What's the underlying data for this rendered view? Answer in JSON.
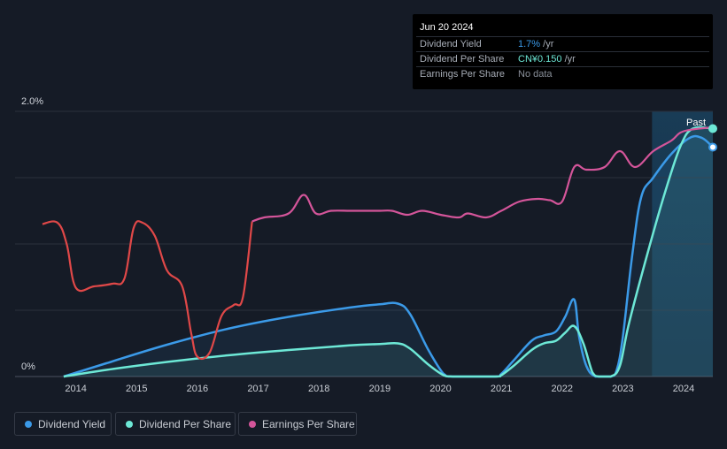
{
  "tooltip": {
    "date": "Jun 20 2024",
    "rows": [
      {
        "label": "Dividend Yield",
        "value": "1.7%",
        "unit": " /yr",
        "color": "#3b9ae8"
      },
      {
        "label": "Dividend Per Share",
        "value": "CN¥0.150",
        "unit": " /yr",
        "color": "#6de8d6"
      },
      {
        "label": "Earnings Per Share",
        "value": "No data",
        "unit": "",
        "color": "#8a909a"
      }
    ]
  },
  "legend": [
    {
      "label": "Dividend Yield",
      "color": "#3b9ae8"
    },
    {
      "label": "Dividend Per Share",
      "color": "#6de8d6"
    },
    {
      "label": "Earnings Per Share",
      "color": "#d4559a"
    }
  ],
  "chart_data": {
    "type": "line",
    "title": "",
    "xlabel": "",
    "ylabel": "",
    "x_ticks": [
      "2014",
      "2015",
      "2016",
      "2017",
      "2018",
      "2019",
      "2020",
      "2021",
      "2022",
      "2023",
      "2024"
    ],
    "y_tick_labels": [
      "0%",
      "2.0%"
    ],
    "ylim": [
      0,
      2.0
    ],
    "xlim": [
      2013.0,
      2024.48
    ],
    "past_label": "Past",
    "past_start": 2023.48,
    "grid": true,
    "series": [
      {
        "name": "Dividend Yield",
        "color": "#3b9ae8",
        "fill": true,
        "points": [
          [
            2013.8,
            0.0
          ],
          [
            2014.5,
            0.1
          ],
          [
            2015.5,
            0.24
          ],
          [
            2016.5,
            0.36
          ],
          [
            2017.5,
            0.45
          ],
          [
            2018.5,
            0.52
          ],
          [
            2019.0,
            0.545
          ],
          [
            2019.3,
            0.55
          ],
          [
            2019.5,
            0.47
          ],
          [
            2019.8,
            0.2
          ],
          [
            2020.05,
            0.02
          ],
          [
            2020.2,
            0.0
          ],
          [
            2020.9,
            0.0
          ],
          [
            2021.0,
            0.02
          ],
          [
            2021.2,
            0.12
          ],
          [
            2021.5,
            0.27
          ],
          [
            2021.7,
            0.31
          ],
          [
            2021.9,
            0.34
          ],
          [
            2022.05,
            0.45
          ],
          [
            2022.2,
            0.58
          ],
          [
            2022.28,
            0.3
          ],
          [
            2022.4,
            0.08
          ],
          [
            2022.55,
            0.0
          ],
          [
            2022.8,
            0.0
          ],
          [
            2022.9,
            0.05
          ],
          [
            2023.0,
            0.3
          ],
          [
            2023.15,
            0.9
          ],
          [
            2023.3,
            1.35
          ],
          [
            2023.5,
            1.5
          ],
          [
            2023.8,
            1.68
          ],
          [
            2024.1,
            1.8
          ],
          [
            2024.3,
            1.8
          ],
          [
            2024.48,
            1.73
          ]
        ]
      },
      {
        "name": "Dividend Per Share",
        "color": "#6de8d6",
        "fill": true,
        "points": [
          [
            2013.8,
            0.0
          ],
          [
            2014.5,
            0.05
          ],
          [
            2015.5,
            0.11
          ],
          [
            2016.5,
            0.16
          ],
          [
            2017.5,
            0.2
          ],
          [
            2018.5,
            0.235
          ],
          [
            2019.0,
            0.245
          ],
          [
            2019.3,
            0.25
          ],
          [
            2019.5,
            0.21
          ],
          [
            2019.8,
            0.09
          ],
          [
            2020.05,
            0.01
          ],
          [
            2020.2,
            0.0
          ],
          [
            2020.9,
            0.0
          ],
          [
            2021.0,
            0.01
          ],
          [
            2021.2,
            0.08
          ],
          [
            2021.5,
            0.2
          ],
          [
            2021.7,
            0.25
          ],
          [
            2021.9,
            0.27
          ],
          [
            2022.05,
            0.33
          ],
          [
            2022.2,
            0.38
          ],
          [
            2022.35,
            0.25
          ],
          [
            2022.5,
            0.03
          ],
          [
            2022.6,
            0.0
          ],
          [
            2022.8,
            0.0
          ],
          [
            2022.95,
            0.08
          ],
          [
            2023.1,
            0.4
          ],
          [
            2023.4,
            0.92
          ],
          [
            2023.7,
            1.4
          ],
          [
            2023.95,
            1.74
          ],
          [
            2024.15,
            1.87
          ],
          [
            2024.48,
            1.87
          ]
        ]
      },
      {
        "name": "Earnings Per Share",
        "color": "#d4559a",
        "neg_color": "#e04848",
        "fill": false,
        "points": [
          [
            2013.45,
            1.15
          ],
          [
            2013.7,
            1.16
          ],
          [
            2013.85,
            1.0
          ],
          [
            2014.0,
            0.67
          ],
          [
            2014.3,
            0.68
          ],
          [
            2014.6,
            0.7
          ],
          [
            2014.8,
            0.74
          ],
          [
            2014.95,
            1.12
          ],
          [
            2015.1,
            1.16
          ],
          [
            2015.3,
            1.06
          ],
          [
            2015.5,
            0.8
          ],
          [
            2015.75,
            0.68
          ],
          [
            2015.9,
            0.32
          ],
          [
            2016.0,
            0.15
          ],
          [
            2016.2,
            0.18
          ],
          [
            2016.4,
            0.46
          ],
          [
            2016.6,
            0.54
          ],
          [
            2016.75,
            0.6
          ],
          [
            2016.9,
            1.17
          ],
          [
            2017.1,
            1.2
          ],
          [
            2017.5,
            1.23
          ],
          [
            2017.75,
            1.37
          ],
          [
            2017.95,
            1.23
          ],
          [
            2018.2,
            1.25
          ],
          [
            2018.5,
            1.25
          ],
          [
            2018.7,
            1.25
          ],
          [
            2019.0,
            1.25
          ],
          [
            2019.2,
            1.25
          ],
          [
            2019.45,
            1.22
          ],
          [
            2019.7,
            1.25
          ],
          [
            2020.0,
            1.22
          ],
          [
            2020.3,
            1.2
          ],
          [
            2020.45,
            1.23
          ],
          [
            2020.75,
            1.2
          ],
          [
            2021.0,
            1.25
          ],
          [
            2021.3,
            1.32
          ],
          [
            2021.6,
            1.34
          ],
          [
            2021.8,
            1.33
          ],
          [
            2022.0,
            1.32
          ],
          [
            2022.2,
            1.58
          ],
          [
            2022.4,
            1.56
          ],
          [
            2022.7,
            1.58
          ],
          [
            2022.95,
            1.7
          ],
          [
            2023.2,
            1.58
          ],
          [
            2023.5,
            1.7
          ],
          [
            2023.8,
            1.78
          ],
          [
            2024.0,
            1.85
          ],
          [
            2024.48,
            1.88
          ]
        ]
      }
    ]
  }
}
